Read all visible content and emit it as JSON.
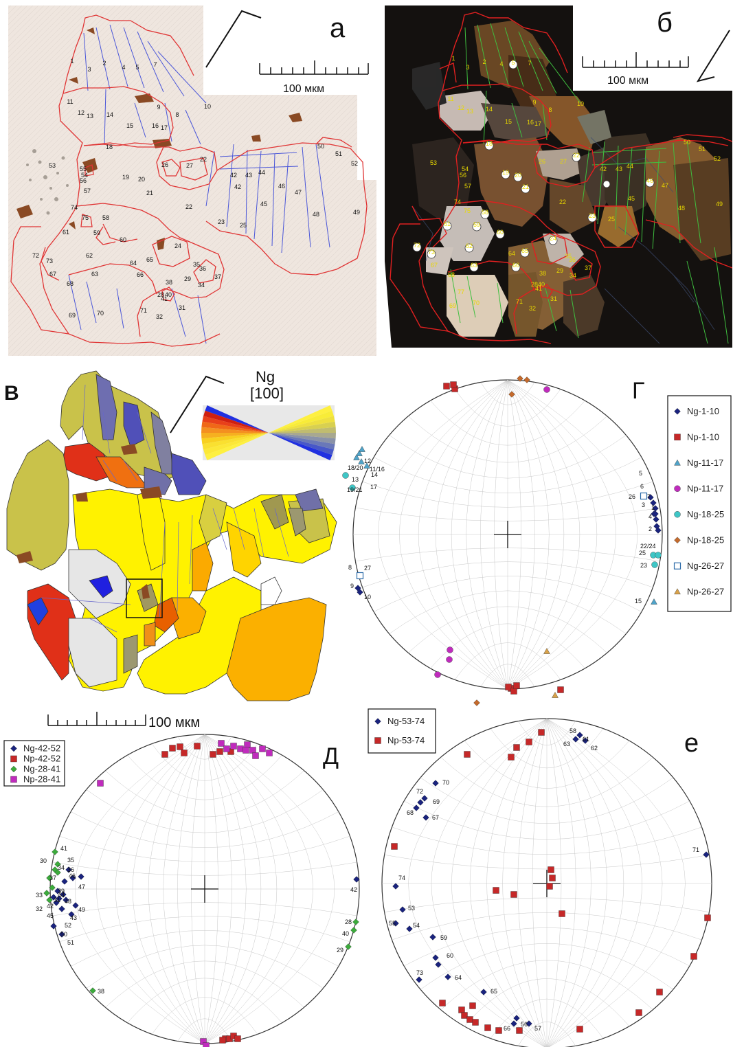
{
  "panel_a": {
    "letter": "а",
    "scale_label": "100 мкм",
    "grain_labels": [
      {
        "t": "1",
        "x": 105,
        "y": 92
      },
      {
        "t": "2",
        "x": 152,
        "y": 95
      },
      {
        "t": "3",
        "x": 130,
        "y": 104
      },
      {
        "t": "4",
        "x": 180,
        "y": 101
      },
      {
        "t": "5",
        "x": 200,
        "y": 101
      },
      {
        "t": "7",
        "x": 226,
        "y": 97
      },
      {
        "t": "11",
        "x": 102,
        "y": 151
      },
      {
        "t": "12",
        "x": 118,
        "y": 167
      },
      {
        "t": "13",
        "x": 131,
        "y": 172
      },
      {
        "t": "14",
        "x": 160,
        "y": 170
      },
      {
        "t": "9",
        "x": 231,
        "y": 159
      },
      {
        "t": "8",
        "x": 258,
        "y": 170
      },
      {
        "t": "10",
        "x": 302,
        "y": 158
      },
      {
        "t": "15",
        "x": 189,
        "y": 186
      },
      {
        "t": "16",
        "x": 226,
        "y": 186
      },
      {
        "t": "17",
        "x": 239,
        "y": 189
      },
      {
        "t": "18",
        "x": 159,
        "y": 217
      },
      {
        "t": "53",
        "x": 76,
        "y": 244
      },
      {
        "t": "55",
        "x": 121,
        "y": 249
      },
      {
        "t": "54",
        "x": 123,
        "y": 258
      },
      {
        "t": "56",
        "x": 121,
        "y": 266
      },
      {
        "t": "19",
        "x": 183,
        "y": 261
      },
      {
        "t": "20",
        "x": 206,
        "y": 264
      },
      {
        "t": "21",
        "x": 218,
        "y": 284
      },
      {
        "t": "26",
        "x": 240,
        "y": 243
      },
      {
        "t": "27",
        "x": 276,
        "y": 244
      },
      {
        "t": "22",
        "x": 296,
        "y": 235
      },
      {
        "t": "50",
        "x": 467,
        "y": 216
      },
      {
        "t": "51",
        "x": 493,
        "y": 227
      },
      {
        "t": "52",
        "x": 516,
        "y": 241
      },
      {
        "t": "42",
        "x": 340,
        "y": 258
      },
      {
        "t": "43",
        "x": 362,
        "y": 258
      },
      {
        "t": "44",
        "x": 381,
        "y": 254
      },
      {
        "t": "46",
        "x": 410,
        "y": 274
      },
      {
        "t": "47",
        "x": 434,
        "y": 283
      },
      {
        "t": "42",
        "x": 346,
        "y": 275
      },
      {
        "t": "57",
        "x": 127,
        "y": 281
      },
      {
        "t": "74",
        "x": 108,
        "y": 305
      },
      {
        "t": "75",
        "x": 124,
        "y": 320
      },
      {
        "t": "58",
        "x": 154,
        "y": 320
      },
      {
        "t": "22",
        "x": 275,
        "y": 304
      },
      {
        "t": "45",
        "x": 384,
        "y": 300
      },
      {
        "t": "48",
        "x": 460,
        "y": 315
      },
      {
        "t": "49",
        "x": 519,
        "y": 312
      },
      {
        "t": "23",
        "x": 322,
        "y": 326
      },
      {
        "t": "25",
        "x": 354,
        "y": 331
      },
      {
        "t": "61",
        "x": 96,
        "y": 341
      },
      {
        "t": "59",
        "x": 141,
        "y": 342
      },
      {
        "t": "60",
        "x": 179,
        "y": 352
      },
      {
        "t": "72",
        "x": 52,
        "y": 375
      },
      {
        "t": "73",
        "x": 72,
        "y": 383
      },
      {
        "t": "62",
        "x": 130,
        "y": 375
      },
      {
        "t": "24",
        "x": 259,
        "y": 361
      },
      {
        "t": "65",
        "x": 218,
        "y": 381
      },
      {
        "t": "64",
        "x": 194,
        "y": 386
      },
      {
        "t": "35",
        "x": 286,
        "y": 388
      },
      {
        "t": "36",
        "x": 295,
        "y": 394
      },
      {
        "t": "67",
        "x": 77,
        "y": 402
      },
      {
        "t": "63",
        "x": 138,
        "y": 402
      },
      {
        "t": "66",
        "x": 204,
        "y": 403
      },
      {
        "t": "37",
        "x": 317,
        "y": 406
      },
      {
        "t": "68",
        "x": 102,
        "y": 416
      },
      {
        "t": "38",
        "x": 246,
        "y": 414
      },
      {
        "t": "29",
        "x": 273,
        "y": 409
      },
      {
        "t": "34",
        "x": 293,
        "y": 418
      },
      {
        "t": "28",
        "x": 234,
        "y": 432
      },
      {
        "t": "40",
        "x": 245,
        "y": 432
      },
      {
        "t": "41",
        "x": 239,
        "y": 438
      },
      {
        "t": "31",
        "x": 265,
        "y": 451
      },
      {
        "t": "70",
        "x": 146,
        "y": 459
      },
      {
        "t": "71",
        "x": 209,
        "y": 455
      },
      {
        "t": "32",
        "x": 232,
        "y": 464
      },
      {
        "t": "69",
        "x": 105,
        "y": 462
      }
    ]
  },
  "panel_b": {
    "letter": "б",
    "scale_label": "100 мкм",
    "grain_labels": [
      {
        "t": "1",
        "x": 660,
        "y": 88
      },
      {
        "t": "3",
        "x": 681,
        "y": 101
      },
      {
        "t": "2",
        "x": 705,
        "y": 93
      },
      {
        "t": "4",
        "x": 730,
        "y": 96
      },
      {
        "t": "5",
        "x": 747,
        "y": 94
      },
      {
        "t": "7",
        "x": 771,
        "y": 95
      },
      {
        "t": "11",
        "x": 656,
        "y": 147
      },
      {
        "t": "12",
        "x": 671,
        "y": 160
      },
      {
        "t": "13",
        "x": 684,
        "y": 165
      },
      {
        "t": "14",
        "x": 712,
        "y": 162
      },
      {
        "t": "9",
        "x": 778,
        "y": 152
      },
      {
        "t": "8",
        "x": 801,
        "y": 163
      },
      {
        "t": "10",
        "x": 845,
        "y": 154
      },
      {
        "t": "15",
        "x": 740,
        "y": 180
      },
      {
        "t": "16",
        "x": 772,
        "y": 181
      },
      {
        "t": "17",
        "x": 783,
        "y": 183
      },
      {
        "t": "18",
        "x": 712,
        "y": 212
      },
      {
        "t": "53",
        "x": 631,
        "y": 240
      },
      {
        "t": "54",
        "x": 677,
        "y": 249
      },
      {
        "t": "56",
        "x": 674,
        "y": 258
      },
      {
        "t": "19",
        "x": 736,
        "y": 254
      },
      {
        "t": "20",
        "x": 754,
        "y": 258
      },
      {
        "t": "21",
        "x": 765,
        "y": 275
      },
      {
        "t": "26",
        "x": 789,
        "y": 238
      },
      {
        "t": "27",
        "x": 820,
        "y": 238
      },
      {
        "t": "22",
        "x": 839,
        "y": 229
      },
      {
        "t": "50",
        "x": 1000,
        "y": 210
      },
      {
        "t": "51",
        "x": 1022,
        "y": 220
      },
      {
        "t": "52",
        "x": 1044,
        "y": 234
      },
      {
        "t": "42",
        "x": 878,
        "y": 249
      },
      {
        "t": "43",
        "x": 901,
        "y": 249
      },
      {
        "t": "44",
        "x": 917,
        "y": 245
      },
      {
        "t": "46",
        "x": 946,
        "y": 266
      },
      {
        "t": "47",
        "x": 968,
        "y": 273
      },
      {
        "t": "57",
        "x": 681,
        "y": 274
      },
      {
        "t": "74",
        "x": 666,
        "y": 297
      },
      {
        "t": "75",
        "x": 680,
        "y": 310
      },
      {
        "t": "58",
        "x": 706,
        "y": 312
      },
      {
        "t": "22",
        "x": 819,
        "y": 297
      },
      {
        "t": "45",
        "x": 919,
        "y": 292
      },
      {
        "t": "48",
        "x": 992,
        "y": 306
      },
      {
        "t": "49",
        "x": 1047,
        "y": 300
      },
      {
        "t": "23",
        "x": 862,
        "y": 317
      },
      {
        "t": "25",
        "x": 890,
        "y": 322
      },
      {
        "t": "61",
        "x": 651,
        "y": 329
      },
      {
        "t": "59",
        "x": 694,
        "y": 330
      },
      {
        "t": "60",
        "x": 728,
        "y": 341
      },
      {
        "t": "72",
        "x": 607,
        "y": 360
      },
      {
        "t": "73",
        "x": 628,
        "y": 370
      },
      {
        "t": "62",
        "x": 683,
        "y": 361
      },
      {
        "t": "24",
        "x": 805,
        "y": 350
      },
      {
        "t": "65",
        "x": 764,
        "y": 368
      },
      {
        "t": "64",
        "x": 745,
        "y": 372
      },
      {
        "t": "35",
        "x": 827,
        "y": 376
      },
      {
        "t": "36",
        "x": 833,
        "y": 381
      },
      {
        "t": "67",
        "x": 632,
        "y": 389
      },
      {
        "t": "63",
        "x": 690,
        "y": 389
      },
      {
        "t": "66",
        "x": 751,
        "y": 389
      },
      {
        "t": "37",
        "x": 856,
        "y": 393
      },
      {
        "t": "68",
        "x": 657,
        "y": 403
      },
      {
        "t": "38",
        "x": 790,
        "y": 401
      },
      {
        "t": "29",
        "x": 815,
        "y": 397
      },
      {
        "t": "34",
        "x": 834,
        "y": 404
      },
      {
        "t": "28",
        "x": 778,
        "y": 417
      },
      {
        "t": "40",
        "x": 788,
        "y": 417
      },
      {
        "t": "41",
        "x": 784,
        "y": 423
      },
      {
        "t": "31",
        "x": 806,
        "y": 438
      },
      {
        "t": "70",
        "x": 693,
        "y": 444
      },
      {
        "t": "71",
        "x": 756,
        "y": 442
      },
      {
        "t": "32",
        "x": 775,
        "y": 452
      },
      {
        "t": "77",
        "x": 671,
        "y": 428
      },
      {
        "t": "69",
        "x": 659,
        "y": 448
      }
    ]
  },
  "panel_v": {
    "letter": "В",
    "ng_label": "Ng",
    "ng_dir": "[100]",
    "scale_label": "100 мкм"
  },
  "panel_g": {
    "letter": "Г",
    "legend": [
      {
        "label": "Ng-1-10",
        "shape": "diamond",
        "color": "#1a237e"
      },
      {
        "label": "Np-1-10",
        "shape": "square",
        "color": "#c62828"
      },
      {
        "label": "Ng-11-17",
        "shape": "triangle",
        "color": "#4fa3c9"
      },
      {
        "label": "Np-11-17",
        "shape": "circle",
        "color": "#c02bbd"
      },
      {
        "label": "Ng-18-25",
        "shape": "circle",
        "color": "#3ec6c6"
      },
      {
        "label": "Np-18-25",
        "shape": "diamond",
        "color": "#c46a2c"
      },
      {
        "label": "Ng-26-27",
        "shape": "square-open",
        "color": "#2a6aa8"
      },
      {
        "label": "Np-26-27",
        "shape": "triangle",
        "color": "#d9a24a"
      }
    ],
    "point_labels": [
      "5",
      "6",
      "7",
      "1",
      "3",
      "4",
      "2",
      "26",
      "22/24",
      "25",
      "23",
      "15",
      "12",
      "11/16",
      "14",
      "13",
      "17",
      "18/20",
      "19/21",
      "8",
      "27",
      "9",
      "10"
    ]
  },
  "panel_d": {
    "letter": "Д",
    "legend": [
      {
        "label": "Ng-42-52",
        "shape": "diamond",
        "color": "#1a237e"
      },
      {
        "label": "Np-42-52",
        "shape": "square",
        "color": "#c62828"
      },
      {
        "label": "Ng-28-41",
        "shape": "diamond",
        "color": "#3cab3c"
      },
      {
        "label": "Np-28-41",
        "shape": "square",
        "color": "#c02bbd"
      }
    ],
    "point_labels": [
      "41",
      "35",
      "30",
      "34",
      "36",
      "37",
      "46",
      "33",
      "39",
      "47",
      "31",
      "32",
      "48",
      "44",
      "42",
      "49",
      "45",
      "43",
      "52",
      "50",
      "51",
      "42",
      "28",
      "40",
      "29",
      "38"
    ]
  },
  "panel_e": {
    "letter": "е",
    "legend": [
      {
        "label": "Ng-53-74",
        "shape": "diamond",
        "color": "#1a237e"
      },
      {
        "label": "Np-53-74",
        "shape": "square",
        "color": "#c62828"
      }
    ],
    "point_labels": [
      "58",
      "61",
      "63",
      "62",
      "70",
      "72",
      "69",
      "68",
      "67",
      "71",
      "74",
      "53",
      "55",
      "54",
      "59",
      "60",
      "73",
      "64",
      "65",
      "66",
      "56",
      "57"
    ]
  }
}
